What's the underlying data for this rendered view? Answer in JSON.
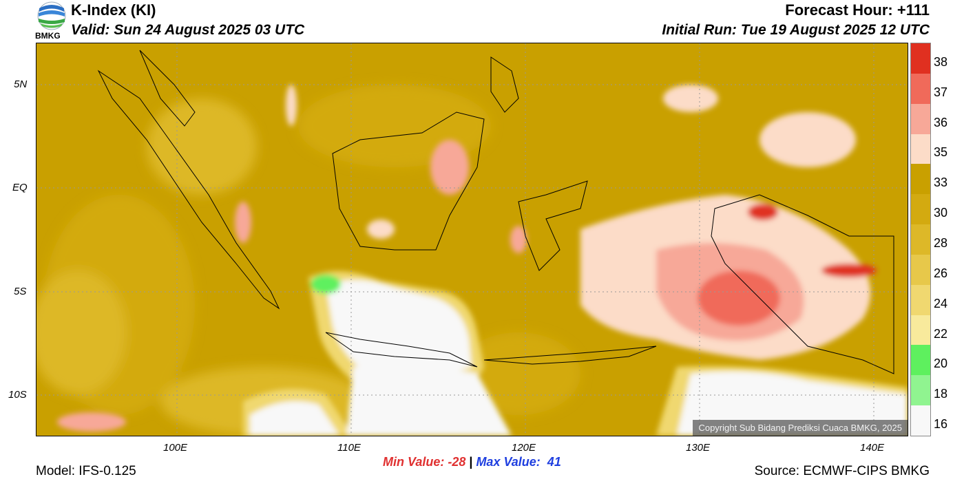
{
  "header": {
    "logo_text": "BMKG",
    "title": "K-Index (KI)",
    "valid": "Valid: Sun 24 August 2025 03 UTC",
    "forecast_hour": "Forecast Hour: +111",
    "initial_run": "Initial Run: Tue 19 August 2025 12 UTC"
  },
  "axes": {
    "lat_labels": [
      "5N",
      "EQ",
      "5S",
      "10S"
    ],
    "lon_labels": [
      "100E",
      "110E",
      "120E",
      "130E",
      "140E"
    ]
  },
  "colorbar": {
    "levels": [
      "38",
      "37",
      "36",
      "35",
      "33",
      "30",
      "28",
      "26",
      "24",
      "22",
      "20",
      "18",
      "16"
    ],
    "colors": [
      "#e03020",
      "#f06a5a",
      "#f7a898",
      "#fcdcc8",
      "#c9a000",
      "#d3aa10",
      "#ddb828",
      "#e7c84a",
      "#f0d870",
      "#f8ea9c",
      "#5ef05e",
      "#90f490",
      "#f8f8f8"
    ]
  },
  "map": {
    "copyright": "Copyright Sub Bidang Prediksi Cuaca BMKG, 2025"
  },
  "footer": {
    "model": "Model: IFS-0.125",
    "min_label": "Min Value: -28",
    "separator": "|",
    "max_label": "Max Value:  41",
    "source": "Source: ECMWF-CIPS BMKG",
    "min_color": "#e03030",
    "max_color": "#1f3fe0"
  }
}
